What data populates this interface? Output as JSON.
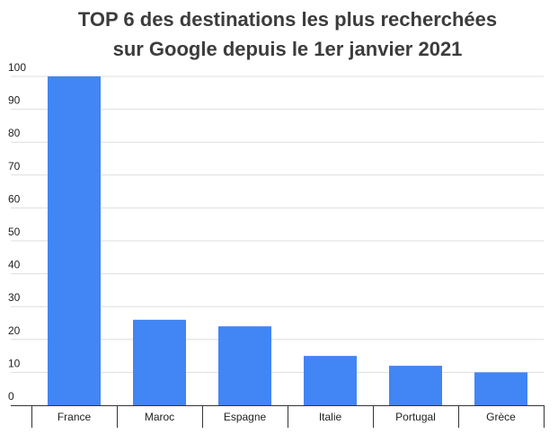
{
  "chart_data": {
    "type": "bar",
    "title_lines": [
      "TOP 6 des destinations les plus recherchées",
      "sur Google depuis le 1er janvier 2021"
    ],
    "categories": [
      "France",
      "Maroc",
      "Espagne",
      "Italie",
      "Portugal",
      "Grèce"
    ],
    "values": [
      100,
      26,
      24,
      15,
      12,
      10
    ],
    "xlabel": "",
    "ylabel": "",
    "ylim": [
      0,
      100
    ],
    "yticks": [
      0,
      10,
      20,
      30,
      40,
      50,
      60,
      70,
      80,
      90,
      100
    ],
    "grid": true,
    "legend": "none",
    "bar_color": "#4285f4",
    "grid_color": "#dedede",
    "axis_color": "#333333",
    "title_color": "#3c3c3c"
  }
}
